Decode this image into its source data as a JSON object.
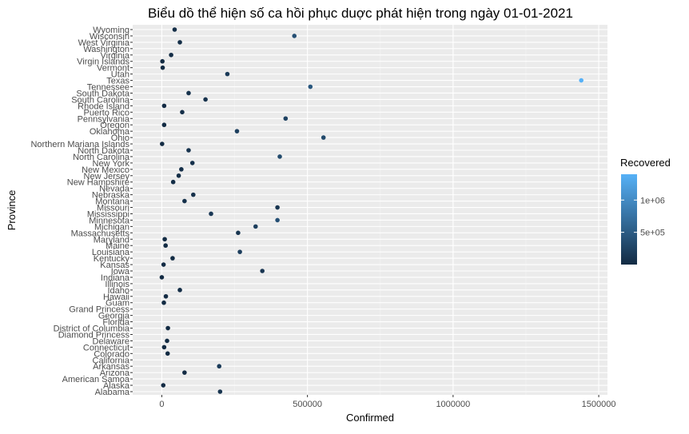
{
  "chart_data": {
    "type": "scatter",
    "title": "Biểu dồ thể hiện số ca hồi phục duợc phát hiện trong ngày 01-01-2021",
    "xlabel": "Confirmed",
    "ylabel": "Province",
    "xlim": [
      -100000,
      1530000
    ],
    "x_ticks": [
      0,
      500000,
      1000000,
      1500000
    ],
    "x_tick_labels": [
      "0",
      "500000",
      "1000000",
      "1500000"
    ],
    "legend": {
      "title": "Recovered",
      "position": "right",
      "range": [
        0,
        1400000
      ],
      "ticks": [
        500000,
        1000000
      ],
      "tick_labels": [
        "5e+05",
        "1e+06"
      ],
      "color_low": "#132B43",
      "color_high": "#56B1F7"
    },
    "grid": true,
    "panel_background": "#EBEBEB",
    "categories": [
      "Alabama",
      "Alaska",
      "American Samoa",
      "Arizona",
      "Arkansas",
      "California",
      "Colorado",
      "Connecticut",
      "Delaware",
      "Diamond Princess",
      "District of Columbia",
      "Florida",
      "Georgia",
      "Grand Princess",
      "Guam",
      "Hawaii",
      "Idaho",
      "Illinois",
      "Indiana",
      "Iowa",
      "Kansas",
      "Kentucky",
      "Louisiana",
      "Maine",
      "Maryland",
      "Massachusetts",
      "Michigan",
      "Minnesota",
      "Mississippi",
      "Missouri",
      "Montana",
      "Nebraska",
      "Nevada",
      "New Hampshire",
      "New Jersey",
      "New Mexico",
      "New York",
      "North Carolina",
      "North Dakota",
      "Northern Mariana Islands",
      "Ohio",
      "Oklahoma",
      "Oregon",
      "Pennsylvania",
      "Puerto Rico",
      "Rhode Island",
      "South Carolina",
      "South Dakota",
      "Tennessee",
      "Texas",
      "Utah",
      "Vermont",
      "Virgin Islands",
      "Virginia",
      "Washington",
      "West Virginia",
      "Wisconsin",
      "Wyoming"
    ],
    "points": [
      {
        "province": "Alabama",
        "confirmed": 200000,
        "recovered": 100000
      },
      {
        "province": "Alaska",
        "confirmed": 5000,
        "recovered": 5000
      },
      {
        "province": "Arizona",
        "confirmed": 78000,
        "recovered": 12000
      },
      {
        "province": "Arkansas",
        "confirmed": 197000,
        "recovered": 170000
      },
      {
        "province": "Colorado",
        "confirmed": 20000,
        "recovered": 2000
      },
      {
        "province": "Connecticut",
        "confirmed": 8000,
        "recovered": 1000
      },
      {
        "province": "Delaware",
        "confirmed": 18000,
        "recovered": 10000
      },
      {
        "province": "District of Columbia",
        "confirmed": 21000,
        "recovered": 1000
      },
      {
        "province": "Guam",
        "confirmed": 7000,
        "recovered": 7000
      },
      {
        "province": "Hawaii",
        "confirmed": 14000,
        "recovered": 11000
      },
      {
        "province": "Idaho",
        "confirmed": 62000,
        "recovered": 30000
      },
      {
        "province": "Iowa",
        "confirmed": 345000,
        "recovered": 115000
      },
      {
        "province": "Indiana",
        "confirmed": 0,
        "recovered": 0
      },
      {
        "province": "Kansas",
        "confirmed": 6000,
        "recovered": 5000
      },
      {
        "province": "Kentucky",
        "confirmed": 37000,
        "recovered": 10000
      },
      {
        "province": "Louisiana",
        "confirmed": 268000,
        "recovered": 200000
      },
      {
        "province": "Maine",
        "confirmed": 13000,
        "recovered": 10000
      },
      {
        "province": "Maryland",
        "confirmed": 10000,
        "recovered": 8000
      },
      {
        "province": "Massachusetts",
        "confirmed": 262000,
        "recovered": 110000
      },
      {
        "province": "Michigan",
        "confirmed": 322000,
        "recovered": 200000
      },
      {
        "province": "Minnesota",
        "confirmed": 397000,
        "recovered": 380000
      },
      {
        "province": "Mississippi",
        "confirmed": 169000,
        "recovered": 140000
      },
      {
        "province": "Missouri",
        "confirmed": 397000,
        "recovered": 100000
      },
      {
        "province": "Montana",
        "confirmed": 78000,
        "recovered": 70000
      },
      {
        "province": "Nebraska",
        "confirmed": 108000,
        "recovered": 60000
      },
      {
        "province": "New Hampshire",
        "confirmed": 39000,
        "recovered": 30000
      },
      {
        "province": "New Jersey",
        "confirmed": 58000,
        "recovered": 30000
      },
      {
        "province": "New Mexico",
        "confirmed": 67000,
        "recovered": 45000
      },
      {
        "province": "New York",
        "confirmed": 105000,
        "recovered": 60000
      },
      {
        "province": "North Carolina",
        "confirmed": 405000,
        "recovered": 330000
      },
      {
        "province": "North Dakota",
        "confirmed": 92000,
        "recovered": 88000
      },
      {
        "province": "Northern Mariana Islands",
        "confirmed": 1000,
        "recovered": 0
      },
      {
        "province": "Ohio",
        "confirmed": 555000,
        "recovered": 320000
      },
      {
        "province": "Oklahoma",
        "confirmed": 258000,
        "recovered": 220000
      },
      {
        "province": "Oregon",
        "confirmed": 8000,
        "recovered": 5000
      },
      {
        "province": "Pennsylvania",
        "confirmed": 425000,
        "recovered": 250000
      },
      {
        "province": "Puerto Rico",
        "confirmed": 70000,
        "recovered": 45000
      },
      {
        "province": "Rhode Island",
        "confirmed": 8000,
        "recovered": 5000
      },
      {
        "province": "South Carolina",
        "confirmed": 150000,
        "recovered": 80000
      },
      {
        "province": "South Dakota",
        "confirmed": 92000,
        "recovered": 85000
      },
      {
        "province": "Tennessee",
        "confirmed": 510000,
        "recovered": 460000
      },
      {
        "province": "Texas",
        "confirmed": 1440000,
        "recovered": 1400000
      },
      {
        "province": "Utah",
        "confirmed": 225000,
        "recovered": 170000
      },
      {
        "province": "Vermont",
        "confirmed": 3000,
        "recovered": 2000
      },
      {
        "province": "Virgin Islands",
        "confirmed": 2000,
        "recovered": 2000
      },
      {
        "province": "Virginia",
        "confirmed": 32000,
        "recovered": 20000
      },
      {
        "province": "West Virginia",
        "confirmed": 62000,
        "recovered": 40000
      },
      {
        "province": "Wisconsin",
        "confirmed": 455000,
        "recovered": 380000
      },
      {
        "province": "Wyoming",
        "confirmed": 44000,
        "recovered": 40000
      }
    ]
  }
}
